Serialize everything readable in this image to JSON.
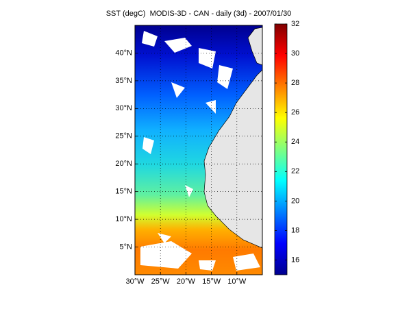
{
  "chart_data": {
    "type": "map",
    "title": "SST (degC)  MODIS-3D - CAN - daily (3d) - 2007/01/30",
    "xlim": [
      -30,
      -5
    ],
    "ylim": [
      0,
      45
    ],
    "xticks": [
      {
        "value": -30,
        "label": "30°W"
      },
      {
        "value": -25,
        "label": "25°W"
      },
      {
        "value": -20,
        "label": "20°W"
      },
      {
        "value": -15,
        "label": "15°W"
      },
      {
        "value": -10,
        "label": "10°W"
      }
    ],
    "yticks": [
      {
        "value": 5,
        "label": "5°N"
      },
      {
        "value": 10,
        "label": "10°N"
      },
      {
        "value": 15,
        "label": "15°N"
      },
      {
        "value": 20,
        "label": "20°N"
      },
      {
        "value": 25,
        "label": "25°N"
      },
      {
        "value": 30,
        "label": "30°N"
      },
      {
        "value": 35,
        "label": "35°N"
      },
      {
        "value": 40,
        "label": "40°N"
      }
    ],
    "grid": true,
    "colorbar": {
      "clim": [
        15,
        32
      ],
      "ticks": [
        16,
        18,
        20,
        22,
        24,
        26,
        28,
        30,
        32
      ]
    }
  }
}
